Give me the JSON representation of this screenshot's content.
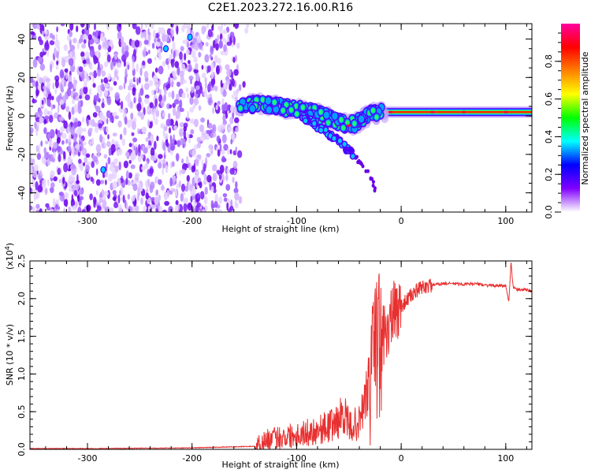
{
  "title": "C2E1.2023.272.16.00.R16",
  "chart_data": [
    {
      "type": "heatmap",
      "xlabel": "Height of straight line (km)",
      "ylabel": "Frequency (Hz)",
      "xlim": [
        -355,
        125
      ],
      "ylim": [
        -50,
        48
      ],
      "x_ticks": [
        -300,
        -200,
        -100,
        0,
        100
      ],
      "y_ticks": [
        -40,
        -20,
        0,
        20,
        40
      ],
      "grid": false,
      "noise_region_x": [
        -355,
        -155
      ],
      "signal_track": [
        {
          "x": -155,
          "y": 5
        },
        {
          "x": -140,
          "y": 6
        },
        {
          "x": -125,
          "y": 6
        },
        {
          "x": -110,
          "y": 4
        },
        {
          "x": -95,
          "y": 3
        },
        {
          "x": -80,
          "y": 1
        },
        {
          "x": -65,
          "y": -2
        },
        {
          "x": -50,
          "y": -5
        },
        {
          "x": -40,
          "y": -3
        },
        {
          "x": -30,
          "y": 1
        },
        {
          "x": -15,
          "y": 2
        },
        {
          "x": 0,
          "y": 2
        },
        {
          "x": 50,
          "y": 2
        },
        {
          "x": 125,
          "y": 2
        }
      ],
      "branch_track": [
        {
          "x": -95,
          "y": 0
        },
        {
          "x": -75,
          "y": -7
        },
        {
          "x": -60,
          "y": -13
        },
        {
          "x": -50,
          "y": -18
        },
        {
          "x": -40,
          "y": -24
        },
        {
          "x": -30,
          "y": -30
        },
        {
          "x": -25,
          "y": -38
        }
      ],
      "colorbar": {
        "label": "Normalized spectral amplitude",
        "range": [
          0.0,
          1.0
        ],
        "ticks": [
          "0.0",
          "0.2",
          "0.4",
          "0.6",
          "0.8"
        ],
        "colors": [
          "#ffffff",
          "#8000ff",
          "#0000ff",
          "#00ffff",
          "#00ff00",
          "#ffff00",
          "#ff8000",
          "#ff0000",
          "#ff00a0"
        ]
      }
    },
    {
      "type": "line",
      "xlabel": "Height of straight line (km)",
      "ylabel": "SNR (10 * v/v)",
      "scale_label": "(x10",
      "scale_exp": "4",
      "scale_close": ")",
      "xlim": [
        -355,
        125
      ],
      "ylim": [
        0,
        2.5
      ],
      "x_ticks": [
        -300,
        -200,
        -100,
        0,
        100
      ],
      "y_ticks": [
        "0.0",
        "0.5",
        "1.0",
        "1.5",
        "2.0",
        "2.5"
      ],
      "line_color": "#e83030",
      "series": [
        {
          "x": [
            -355,
            -300,
            -200,
            -140,
            -130,
            -120,
            -110,
            -100,
            -90,
            -80,
            -70,
            -60,
            -55,
            -50,
            -40,
            -30,
            -25,
            -20,
            -15,
            -10,
            -5,
            0,
            10,
            20,
            30,
            40,
            50,
            60,
            70,
            80,
            90,
            100,
            103,
            105,
            107,
            110,
            120,
            125
          ],
          "y": [
            0.01,
            0.01,
            0.02,
            0.04,
            0.12,
            0.15,
            0.18,
            0.2,
            0.22,
            0.26,
            0.3,
            0.38,
            0.5,
            0.3,
            0.35,
            0.9,
            1.4,
            1.6,
            1.55,
            1.7,
            1.85,
            1.9,
            2.05,
            2.15,
            2.18,
            2.2,
            2.2,
            2.19,
            2.2,
            2.18,
            2.17,
            2.17,
            1.95,
            2.5,
            2.15,
            2.12,
            2.12,
            2.1
          ]
        }
      ]
    }
  ]
}
